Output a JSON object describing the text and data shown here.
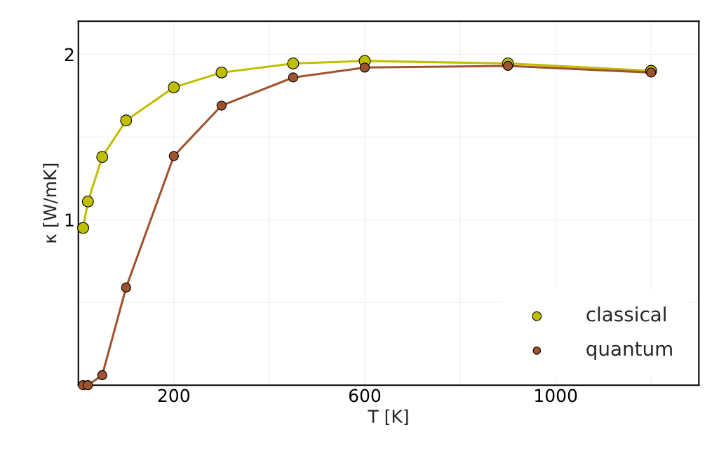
{
  "chart_data": {
    "type": "line",
    "xlabel": "T [K]",
    "ylabel": "κ [W/mK]",
    "xlim": [
      0,
      1300
    ],
    "xticks": [
      200,
      {
        "value": 400,
        "label": null
      },
      600,
      {
        "value": 800,
        "label": null
      },
      1000,
      {
        "value": 1200,
        "label": null
      }
    ],
    "ylim": [
      0,
      2.2
    ],
    "yticks": [
      {
        "value": 0.5,
        "label": null
      },
      1,
      {
        "value": 1.5,
        "label": null
      },
      2
    ],
    "x": [
      10,
      20,
      50,
      100,
      200,
      300,
      450,
      600,
      900,
      1200
    ],
    "series": [
      {
        "name": "classical",
        "color": "#bfbf00",
        "values": [
          0.95,
          1.11,
          1.38,
          1.6,
          1.8,
          1.89,
          1.945,
          1.96,
          1.945,
          1.9
        ]
      },
      {
        "name": "quantum",
        "color": "#a0522d",
        "values": [
          0.0,
          0.0,
          0.06,
          0.59,
          1.385,
          1.69,
          1.86,
          1.92,
          1.93,
          1.89
        ]
      }
    ],
    "marker": "circle",
    "line_style": "solid",
    "grid": true,
    "legend": "bottom right"
  }
}
